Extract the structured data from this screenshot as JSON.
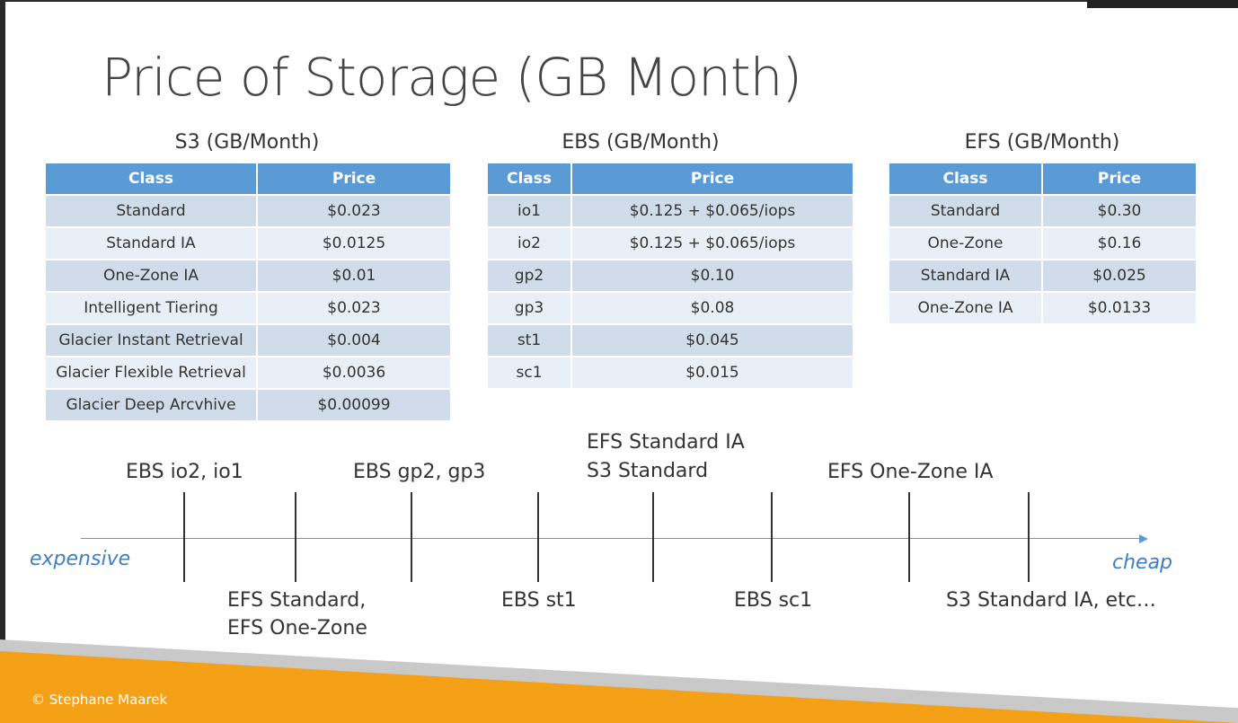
{
  "title": "Price of Storage (GB Month)",
  "tables": {
    "s3": {
      "heading": "S3 (GB/Month)",
      "headers": [
        "Class",
        "Price"
      ],
      "rows": [
        [
          "Standard",
          "$0.023"
        ],
        [
          "Standard IA",
          "$0.0125"
        ],
        [
          "One-Zone IA",
          "$0.01"
        ],
        [
          "Intelligent Tiering",
          "$0.023"
        ],
        [
          "Glacier Instant Retrieval",
          "$0.004"
        ],
        [
          "Glacier Flexible Retrieval",
          "$0.0036"
        ],
        [
          "Glacier Deep Arcvhive",
          "$0.00099"
        ]
      ]
    },
    "ebs": {
      "heading": "EBS (GB/Month)",
      "headers": [
        "Class",
        "Price"
      ],
      "rows": [
        [
          "io1",
          "$0.125 + $0.065/iops"
        ],
        [
          "io2",
          "$0.125 + $0.065/iops"
        ],
        [
          "gp2",
          "$0.10"
        ],
        [
          "gp3",
          "$0.08"
        ],
        [
          "st1",
          "$0.045"
        ],
        [
          "sc1",
          "$0.015"
        ]
      ]
    },
    "efs": {
      "heading": "EFS (GB/Month)",
      "headers": [
        "Class",
        "Price"
      ],
      "rows": [
        [
          "Standard",
          "$0.30"
        ],
        [
          "One-Zone",
          "$0.16"
        ],
        [
          "Standard IA",
          "$0.025"
        ],
        [
          "One-Zone IA",
          "$0.0133"
        ]
      ]
    }
  },
  "timeline": {
    "expensive_label": "expensive",
    "cheap_label": "cheap",
    "labels": {
      "ebs_io": "EBS io2, io1",
      "efs_standard_1": "EFS Standard,",
      "efs_standard_2": "EFS One-Zone",
      "ebs_gp": "EBS gp2, gp3",
      "ebs_st1": "EBS st1",
      "efs_ia_1": "EFS Standard IA",
      "efs_ia_2": "S3 Standard",
      "ebs_sc1": "EBS sc1",
      "efs_onezone_ia": "EFS One-Zone IA",
      "s3_standard_ia": "S3 Standard IA, etc…"
    }
  },
  "footer": {
    "copyright": "© Stephane Maarek"
  },
  "colors": {
    "table_header": "#5b9bd5",
    "row_dark": "#d0dcea",
    "row_light": "#e9eff7",
    "axis": "#5b9bd5",
    "accent_orange": "#f4a118"
  }
}
